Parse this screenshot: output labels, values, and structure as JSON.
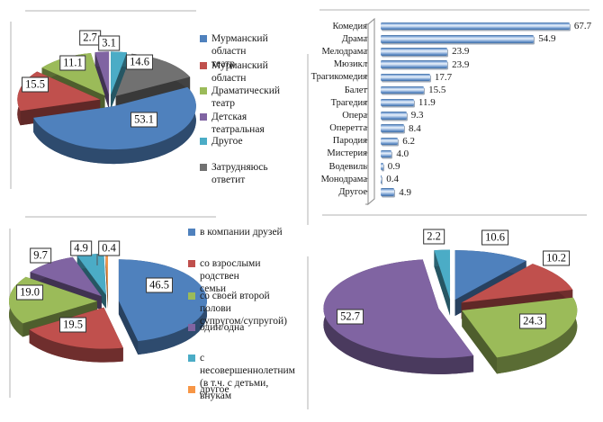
{
  "page": {
    "background": "#ffffff"
  },
  "palette": {
    "blue": "#4f81bd",
    "red": "#c0504d",
    "green": "#9bbb59",
    "purple": "#8064a2",
    "cyan": "#4bacc6",
    "gray": "#717171",
    "orange": "#f79646"
  },
  "chart_data": [
    {
      "id": "theatres_pie",
      "type": "pie",
      "style": "3d-exploded",
      "legend_position": "right",
      "labels": [
        "Мурманский областн театр",
        "Мурманский областн",
        "Драматический театр",
        "Детская театральная",
        "Другое",
        "Затрудняюсь ответит"
      ],
      "legend_lines": [
        [
          "Мурманский областн",
          "театр"
        ],
        [
          "Мурманский областн"
        ],
        [
          "Драматический театр"
        ],
        [
          "Детская театральная"
        ],
        [
          "Другое"
        ],
        [
          "Затрудняюсь ответит"
        ]
      ],
      "values": [
        53.1,
        15.5,
        11.1,
        2.7,
        3.1,
        14.6
      ],
      "colors": [
        "#4f81bd",
        "#c0504d",
        "#9bbb59",
        "#8064a2",
        "#4bacc6",
        "#717171"
      ],
      "clockwise_from_top": [
        4,
        5,
        0,
        1,
        2,
        3
      ]
    },
    {
      "id": "genres_bar",
      "type": "bar",
      "orientation": "horizontal",
      "grid": false,
      "categories": [
        "Комедия",
        "Драма",
        "Мелодрама",
        "Мюзикл",
        "Трагикомедия",
        "Балет",
        "Трагедия",
        "Опера",
        "Оперетта",
        "Пародия",
        "Мистерия",
        "Водевиль",
        "Монодрама",
        "Другое"
      ],
      "values": [
        67.7,
        54.9,
        23.9,
        23.9,
        17.7,
        15.5,
        11.9,
        9.3,
        8.4,
        6.2,
        4.0,
        0.9,
        0.4,
        4.9
      ],
      "bar_color": "#4f81bd",
      "xlim": [
        0,
        70
      ]
    },
    {
      "id": "company_pie",
      "type": "pie",
      "style": "3d-exploded",
      "legend_position": "right",
      "labels": [
        "в компании друзей",
        "со взрослыми родствен семьи",
        "со своей второй полови супругом/супругой)",
        "один/одна",
        "с несовершеннолетним (в т.ч. с детьми, внукам",
        "другое"
      ],
      "legend_lines": [
        [
          "в компании друзей"
        ],
        [
          "со взрослыми родствен",
          "семьи"
        ],
        [
          "со своей второй полови",
          "супругом/супругой)"
        ],
        [
          "один/одна"
        ],
        [
          "с несовершеннолетним",
          "(в т.ч. с детьми, внукам"
        ],
        [
          "другое"
        ]
      ],
      "values": [
        46.5,
        19.5,
        19.0,
        9.7,
        4.9,
        0.4
      ],
      "colors": [
        "#4f81bd",
        "#c0504d",
        "#9bbb59",
        "#8064a2",
        "#4bacc6",
        "#f79646"
      ],
      "clockwise_from_top": [
        0,
        1,
        2,
        3,
        4,
        5
      ]
    },
    {
      "id": "attendance_pie",
      "type": "pie",
      "style": "3d-exploded",
      "legend_position": "none",
      "labels": [],
      "legend_lines": [],
      "values": [
        10.6,
        10.2,
        24.3,
        52.7,
        2.2
      ],
      "colors": [
        "#4f81bd",
        "#c0504d",
        "#9bbb59",
        "#8064a2",
        "#4bacc6"
      ],
      "clockwise_from_top": [
        0,
        1,
        2,
        3,
        4
      ]
    }
  ]
}
